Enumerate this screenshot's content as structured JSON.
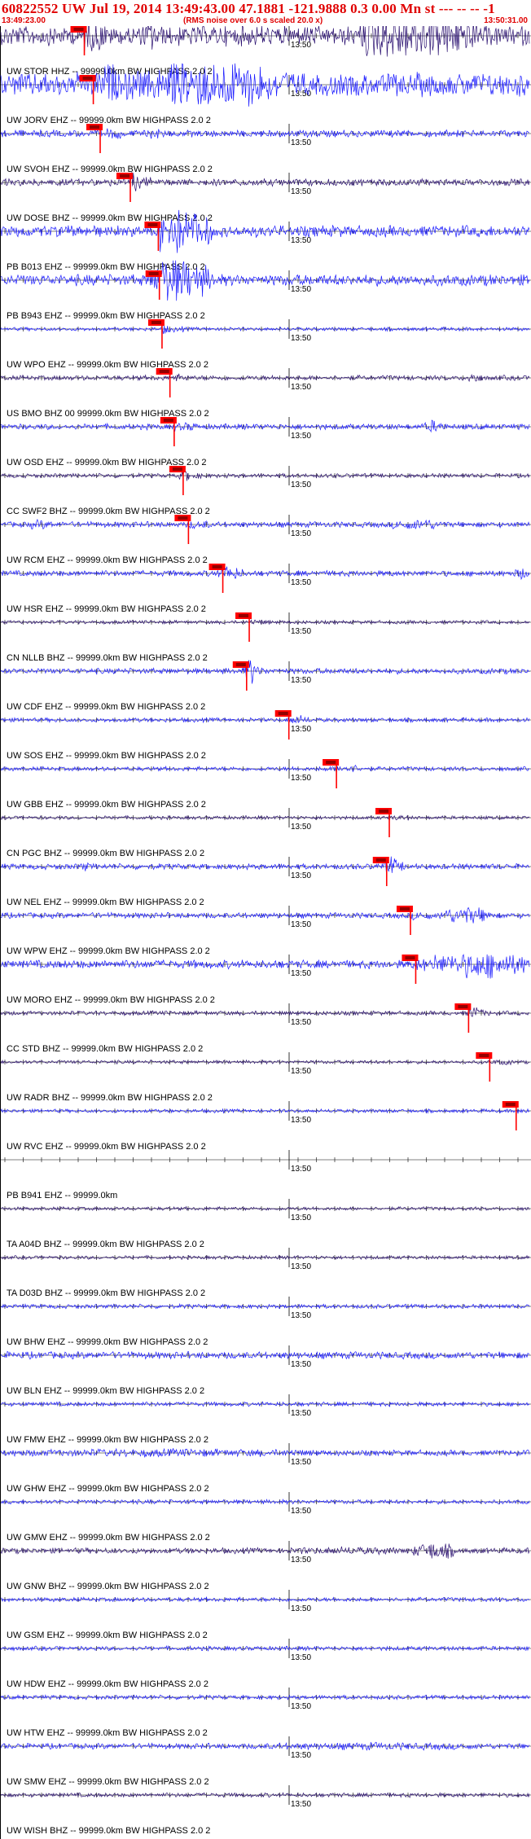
{
  "header": {
    "title": "60822552 UW Jul 19, 2014 13:49:43.00   47.1881 -121.9888  0.3 0.00 Mn st --- -- --  -1",
    "start_time": "13:49:23.00",
    "rms_note": "(RMS noise over 6.0 s scaled 20.0 x)",
    "end_time": "13:50:31.00"
  },
  "colors": {
    "title": "#e00000",
    "trace_primary": "#1a1aff",
    "trace_secondary": "#2a1070",
    "pick": "#ff0000",
    "axis": "#000000"
  },
  "minute_label": "13:50",
  "traces": [
    {
      "label": "UW STOR HHZ -- 99999.0km BW  HIGHPASS  2.0  2",
      "pick": 0.158,
      "amp": 14,
      "color": "secondary",
      "bursts": [
        [
          0.68,
          0.8,
          3.5
        ],
        [
          0.76,
          0.9,
          2.5
        ],
        [
          0.27,
          0.3,
          2
        ]
      ]
    },
    {
      "label": "UW JORV EHZ -- 99999.0km BW  HIGHPASS  2.0  2",
      "pick": 0.175,
      "amp": 16,
      "color": "primary",
      "bursts": [
        [
          0.2,
          0.55,
          1.6
        ],
        [
          0.32,
          0.5,
          2.5
        ]
      ]
    },
    {
      "label": "UW SVOH EHZ -- 99999.0km BW  HIGHPASS  2.0  2",
      "pick": 0.188,
      "amp": 5,
      "color": "primary",
      "bursts": [
        [
          0.28,
          0.3,
          2
        ]
      ]
    },
    {
      "label": "UW DOSE BHZ -- 99999.0km BW  HIGHPASS  2.0  2",
      "pick": 0.245,
      "amp": 5,
      "color": "secondary",
      "bursts": [
        [
          0.24,
          0.26,
          2.5
        ]
      ]
    },
    {
      "label": "PB B013 EHZ -- 99999.0km BW  HIGHPASS  2.0  2",
      "pick": 0.298,
      "amp": 8,
      "color": "primary",
      "bursts": [
        [
          0.3,
          0.4,
          4
        ]
      ]
    },
    {
      "label": "PB B943 EHZ -- 99999.0km BW  HIGHPASS  2.0  2",
      "pick": 0.3,
      "amp": 8,
      "color": "primary",
      "bursts": [
        [
          0.28,
          0.4,
          4
        ]
      ]
    },
    {
      "label": "UW WPO EHZ -- 99999.0km BW  HIGHPASS  2.0  2",
      "pick": 0.305,
      "amp": 2.5,
      "color": "primary",
      "bursts": [
        [
          0.3,
          0.32,
          2
        ]
      ]
    },
    {
      "label": "US BMO BHZ 00 99999.0km BW  HIGHPASS  2.0  2",
      "pick": 0.32,
      "amp": 3.5,
      "color": "secondary",
      "bursts": [
        [
          0.88,
          0.91,
          2.5
        ]
      ]
    },
    {
      "label": "UW OSD EHZ -- 99999.0km BW  HIGHPASS  2.0  2",
      "pick": 0.328,
      "amp": 4,
      "color": "primary",
      "bursts": [
        [
          0.8,
          0.84,
          2.5
        ]
      ]
    },
    {
      "label": "CC SWF2 BHZ -- 99999.0km BW  HIGHPASS  2.0  2",
      "pick": 0.345,
      "amp": 3,
      "color": "secondary",
      "bursts": [
        [
          0.33,
          0.36,
          2
        ]
      ]
    },
    {
      "label": "UW RCM EHZ -- 99999.0km BW  HIGHPASS  2.0  2",
      "pick": 0.355,
      "amp": 4,
      "color": "primary",
      "bursts": [
        [
          0.74,
          0.84,
          2.2
        ],
        [
          0.05,
          0.1,
          1.8
        ]
      ]
    },
    {
      "label": "UW HSR EHZ -- 99999.0km BW  HIGHPASS  2.0  2",
      "pick": 0.42,
      "amp": 4,
      "color": "primary",
      "bursts": [
        [
          0.97,
          1.0,
          2.2
        ],
        [
          0.4,
          0.45,
          2
        ]
      ]
    },
    {
      "label": "CN NLLB BHZ -- 99999.0km BW  HIGHPASS  2.0  2",
      "pick": 0.47,
      "amp": 2.5,
      "color": "secondary",
      "bursts": []
    },
    {
      "label": "UW CDF EHZ -- 99999.0km BW  HIGHPASS  2.0  2",
      "pick": 0.465,
      "amp": 4,
      "color": "primary",
      "bursts": [
        [
          0.46,
          0.48,
          4
        ]
      ]
    },
    {
      "label": "UW SOS EHZ -- 99999.0km BW  HIGHPASS  2.0  2",
      "pick": 0.545,
      "amp": 3,
      "color": "primary",
      "bursts": [
        [
          0.54,
          0.58,
          1.5
        ]
      ]
    },
    {
      "label": "UW GBB EHZ -- 99999.0km BW  HIGHPASS  2.0  2",
      "pick": 0.635,
      "amp": 3,
      "color": "primary",
      "bursts": [
        [
          0.6,
          0.7,
          1.4
        ]
      ]
    },
    {
      "label": "CN PGC BHZ -- 99999.0km BW  HIGHPASS  2.0  2",
      "pick": 0.735,
      "amp": 2.5,
      "color": "secondary",
      "bursts": []
    },
    {
      "label": "UW NEL EHZ -- 99999.0km BW  HIGHPASS  2.0  2",
      "pick": 0.73,
      "amp": 4,
      "color": "primary",
      "bursts": [
        [
          0.72,
          0.75,
          2.5
        ],
        [
          0.15,
          0.17,
          2
        ]
      ]
    },
    {
      "label": "UW WPW EHZ -- 99999.0km BW  HIGHPASS  2.0  2",
      "pick": 0.775,
      "amp": 4,
      "color": "primary",
      "bursts": [
        [
          0.83,
          0.93,
          3.5
        ]
      ]
    },
    {
      "label": "UW MORO EHZ -- 99999.0km BW  HIGHPASS  2.0  2",
      "pick": 0.785,
      "amp": 6,
      "color": "primary",
      "bursts": [
        [
          0.82,
          1.0,
          3.5
        ]
      ]
    },
    {
      "label": "CC STD BHZ -- 99999.0km BW  HIGHPASS  2.0  2",
      "pick": 0.885,
      "amp": 3,
      "color": "secondary",
      "bursts": [
        [
          0.88,
          0.91,
          2
        ]
      ]
    },
    {
      "label": "UW RADR BHZ -- 99999.0km BW  HIGHPASS  2.0  2",
      "pick": 0.925,
      "amp": 2.5,
      "color": "secondary",
      "bursts": []
    },
    {
      "label": "UW RVC EHZ -- 99999.0km BW  HIGHPASS  2.0  2",
      "pick": 0.975,
      "amp": 2.5,
      "color": "primary",
      "bursts": []
    },
    {
      "label": "PB B941 EHZ -- 99999.0km",
      "pick": null,
      "amp": 0,
      "color": "primary",
      "bursts": []
    },
    {
      "label": "TA A04D BHZ -- 99999.0km BW  HIGHPASS  2.0  2",
      "pick": null,
      "amp": 2.5,
      "color": "secondary",
      "bursts": []
    },
    {
      "label": "TA D03D BHZ -- 99999.0km BW  HIGHPASS  2.0  2",
      "pick": null,
      "amp": 2.5,
      "color": "secondary",
      "bursts": []
    },
    {
      "label": "UW BHW EHZ -- 99999.0km BW  HIGHPASS  2.0  2",
      "pick": null,
      "amp": 3,
      "color": "primary",
      "bursts": []
    },
    {
      "label": "UW BLN EHZ -- 99999.0km BW  HIGHPASS  2.0  2",
      "pick": null,
      "amp": 5,
      "color": "primary",
      "bursts": []
    },
    {
      "label": "UW FMW EHZ -- 99999.0km BW  HIGHPASS  2.0  2",
      "pick": null,
      "amp": 3,
      "color": "primary",
      "bursts": []
    },
    {
      "label": "UW GHW EHZ -- 99999.0km BW  HIGHPASS  2.0  2",
      "pick": null,
      "amp": 4,
      "color": "primary",
      "bursts": [
        [
          0.02,
          0.6,
          1.5
        ]
      ]
    },
    {
      "label": "UW GMW EHZ -- 99999.0km BW  HIGHPASS  2.0  2",
      "pick": null,
      "amp": 3,
      "color": "primary",
      "bursts": []
    },
    {
      "label": "UW GNW BHZ -- 99999.0km BW  HIGHPASS  2.0  2",
      "pick": null,
      "amp": 4,
      "color": "secondary",
      "bursts": [
        [
          0.78,
          0.86,
          3.5
        ],
        [
          0.55,
          0.75,
          1.5
        ]
      ]
    },
    {
      "label": "UW GSM EHZ -- 99999.0km BW  HIGHPASS  2.0  2",
      "pick": null,
      "amp": 3,
      "color": "primary",
      "bursts": []
    },
    {
      "label": "UW HDW EHZ -- 99999.0km BW  HIGHPASS  2.0  2",
      "pick": null,
      "amp": 3,
      "color": "primary",
      "bursts": []
    },
    {
      "label": "UW HTW EHZ -- 99999.0km BW  HIGHPASS  2.0  2",
      "pick": null,
      "amp": 3,
      "color": "primary",
      "bursts": []
    },
    {
      "label": "UW SMW EHZ -- 99999.0km BW  HIGHPASS  2.0  2",
      "pick": null,
      "amp": 4,
      "color": "primary",
      "bursts": [
        [
          0.5,
          0.9,
          1.4
        ]
      ]
    },
    {
      "label": "UW WISH BHZ -- 99999.0km BW  HIGHPASS  2.0  2",
      "pick": null,
      "amp": 3,
      "color": "secondary",
      "bursts": []
    }
  ]
}
